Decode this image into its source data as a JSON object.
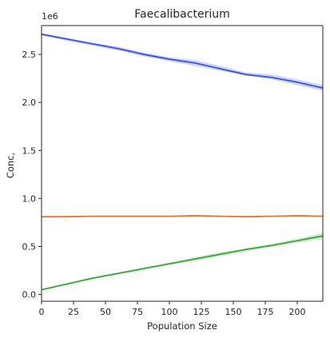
{
  "chart_data": {
    "type": "line",
    "title": "Faecalibacterium",
    "xlabel": "Population Size",
    "ylabel": "Conc,",
    "y_offset_label": "1e6",
    "xlim": [
      0,
      220
    ],
    "ylim": [
      -0.07,
      2.8
    ],
    "xticks": [
      0,
      25,
      50,
      75,
      100,
      125,
      150,
      175,
      200
    ],
    "yticks": [
      0.0,
      0.5,
      1.0,
      1.5,
      2.0,
      2.5
    ],
    "ytick_labels": [
      "0.0",
      "0.5",
      "1.0",
      "1.5",
      "2.0",
      "2.5"
    ],
    "grid": false,
    "legend": "none",
    "series": [
      {
        "color": "#3c55d6",
        "band_color": "#3c55d6",
        "x": [
          0,
          20,
          40,
          60,
          80,
          100,
          120,
          140,
          160,
          180,
          200,
          220
        ],
        "y": [
          2.71,
          2.66,
          2.61,
          2.56,
          2.5,
          2.45,
          2.41,
          2.35,
          2.29,
          2.26,
          2.21,
          2.15
        ],
        "lower": [
          2.7,
          2.64,
          2.59,
          2.54,
          2.48,
          2.43,
          2.38,
          2.33,
          2.28,
          2.24,
          2.18,
          2.12
        ],
        "upper": [
          2.72,
          2.67,
          2.62,
          2.58,
          2.52,
          2.47,
          2.44,
          2.38,
          2.31,
          2.29,
          2.24,
          2.18
        ]
      },
      {
        "color": "#e8742c",
        "band_color": "#e8742c",
        "x": [
          0,
          20,
          40,
          60,
          80,
          100,
          120,
          140,
          160,
          180,
          200,
          220
        ],
        "y": [
          0.81,
          0.81,
          0.815,
          0.815,
          0.815,
          0.815,
          0.82,
          0.815,
          0.81,
          0.815,
          0.82,
          0.815
        ],
        "lower": [
          0.8,
          0.8,
          0.81,
          0.81,
          0.81,
          0.81,
          0.81,
          0.81,
          0.8,
          0.81,
          0.81,
          0.81
        ],
        "upper": [
          0.82,
          0.82,
          0.82,
          0.82,
          0.82,
          0.82,
          0.83,
          0.82,
          0.82,
          0.82,
          0.83,
          0.82
        ]
      },
      {
        "color": "#3aa63a",
        "band_color": "#3aa63a",
        "x": [
          0,
          20,
          40,
          60,
          80,
          100,
          120,
          140,
          160,
          180,
          200,
          220
        ],
        "y": [
          0.05,
          0.11,
          0.17,
          0.22,
          0.27,
          0.32,
          0.37,
          0.42,
          0.47,
          0.51,
          0.56,
          0.61
        ],
        "lower": [
          0.045,
          0.1,
          0.16,
          0.21,
          0.26,
          0.31,
          0.35,
          0.4,
          0.45,
          0.5,
          0.54,
          0.58
        ],
        "upper": [
          0.055,
          0.12,
          0.18,
          0.23,
          0.28,
          0.33,
          0.39,
          0.44,
          0.48,
          0.53,
          0.58,
          0.64
        ]
      }
    ]
  }
}
